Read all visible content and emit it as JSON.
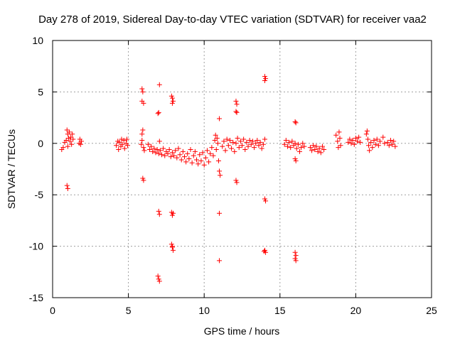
{
  "chart_data": {
    "type": "scatter",
    "title": "Day 278 of 2019, Sidereal Day-to-day VTEC variation (SDTVAR) for receiver vaa2",
    "xlabel": "GPS time / hours",
    "ylabel": "SDTVAR / TECUs",
    "xlim": [
      0,
      25
    ],
    "ylim": [
      -15,
      10
    ],
    "xticks": [
      0,
      5,
      10,
      15,
      20,
      25
    ],
    "yticks": [
      -15,
      -10,
      -5,
      0,
      5,
      10
    ],
    "grid": true,
    "marker": "+",
    "marker_color": "#ff0000",
    "series": [
      {
        "name": "SDTVAR",
        "points": [
          [
            0.6,
            -0.6
          ],
          [
            0.7,
            -0.4
          ],
          [
            0.8,
            0.1
          ],
          [
            0.9,
            0.3
          ],
          [
            0.95,
            1.3
          ],
          [
            1.0,
            -0.3
          ],
          [
            1.0,
            0.9
          ],
          [
            1.05,
            0.5
          ],
          [
            1.1,
            1.1
          ],
          [
            1.15,
            0.2
          ],
          [
            1.2,
            0.6
          ],
          [
            1.25,
            -0.1
          ],
          [
            1.3,
            0.9
          ],
          [
            1.35,
            0.4
          ],
          [
            0.95,
            -4.1
          ],
          [
            1.0,
            -4.4
          ],
          [
            1.75,
            0.0
          ],
          [
            1.8,
            0.4
          ],
          [
            1.85,
            -0.1
          ],
          [
            1.9,
            0.2
          ],
          [
            4.2,
            -0.2
          ],
          [
            4.3,
            0.2
          ],
          [
            4.35,
            -0.6
          ],
          [
            4.4,
            0.1
          ],
          [
            4.5,
            -0.3
          ],
          [
            4.55,
            0.4
          ],
          [
            4.6,
            -0.1
          ],
          [
            4.7,
            0.3
          ],
          [
            4.75,
            -0.5
          ],
          [
            4.85,
            0.0
          ],
          [
            4.9,
            0.4
          ],
          [
            4.95,
            -0.2
          ],
          [
            5.9,
            5.3
          ],
          [
            5.95,
            5.0
          ],
          [
            5.9,
            4.1
          ],
          [
            6.0,
            3.9
          ],
          [
            5.95,
            1.3
          ],
          [
            5.9,
            0.9
          ],
          [
            5.85,
            -0.1
          ],
          [
            5.9,
            0.3
          ],
          [
            6.0,
            -0.4
          ],
          [
            6.05,
            -0.7
          ],
          [
            5.95,
            -3.4
          ],
          [
            6.0,
            -3.6
          ],
          [
            6.3,
            -0.1
          ],
          [
            6.4,
            -0.6
          ],
          [
            6.5,
            -0.3
          ],
          [
            6.6,
            -0.8
          ],
          [
            6.7,
            -0.5
          ],
          [
            6.8,
            -0.9
          ],
          [
            6.9,
            -0.6
          ],
          [
            7.0,
            -1.0
          ],
          [
            7.05,
            0.2
          ],
          [
            7.1,
            -0.7
          ],
          [
            7.2,
            -1.1
          ],
          [
            7.3,
            -0.5
          ],
          [
            7.4,
            -1.2
          ],
          [
            7.5,
            -0.8
          ],
          [
            7.6,
            -1.0
          ],
          [
            7.7,
            -0.6
          ],
          [
            7.8,
            -1.3
          ],
          [
            7.9,
            -0.9
          ],
          [
            8.0,
            -1.2
          ],
          [
            8.1,
            -0.7
          ],
          [
            8.2,
            -1.4
          ],
          [
            8.3,
            -0.5
          ],
          [
            8.4,
            -1.1
          ],
          [
            8.5,
            -1.6
          ],
          [
            8.6,
            -0.8
          ],
          [
            8.7,
            -1.3
          ],
          [
            8.8,
            -1.8
          ],
          [
            8.9,
            -1.0
          ],
          [
            9.0,
            -1.5
          ],
          [
            9.1,
            -0.6
          ],
          [
            9.2,
            -1.9
          ],
          [
            9.3,
            -1.2
          ],
          [
            9.4,
            -0.8
          ],
          [
            9.5,
            -1.6
          ],
          [
            9.6,
            -2.0
          ],
          [
            9.7,
            -1.1
          ],
          [
            9.8,
            -1.7
          ],
          [
            9.9,
            -0.9
          ],
          [
            10.0,
            -2.1
          ],
          [
            10.1,
            -1.4
          ],
          [
            10.2,
            -0.7
          ],
          [
            10.3,
            -1.8
          ],
          [
            10.4,
            -1.0
          ],
          [
            10.5,
            -0.4
          ],
          [
            10.6,
            -1.2
          ],
          [
            10.7,
            0.3
          ],
          [
            10.75,
            0.8
          ],
          [
            10.8,
            -0.6
          ],
          [
            10.85,
            0.5
          ],
          [
            10.9,
            0.0
          ],
          [
            7.05,
            5.7
          ],
          [
            7.0,
            3.0
          ],
          [
            6.95,
            2.9
          ],
          [
            7.0,
            -6.6
          ],
          [
            7.05,
            -6.9
          ],
          [
            6.95,
            -12.9
          ],
          [
            7.0,
            -13.2
          ],
          [
            7.05,
            -13.4
          ],
          [
            7.85,
            4.6
          ],
          [
            7.9,
            4.4
          ],
          [
            7.95,
            4.1
          ],
          [
            7.9,
            3.9
          ],
          [
            7.85,
            -6.7
          ],
          [
            7.9,
            -7.0
          ],
          [
            7.95,
            -6.8
          ],
          [
            7.85,
            -9.8
          ],
          [
            7.9,
            -10.1
          ],
          [
            7.95,
            -10.4
          ],
          [
            7.9,
            -10.0
          ],
          [
            11.0,
            2.4
          ],
          [
            10.95,
            -1.7
          ],
          [
            11.0,
            -2.7
          ],
          [
            11.05,
            -3.1
          ],
          [
            11.0,
            -6.8
          ],
          [
            11.0,
            -11.4
          ],
          [
            11.2,
            -0.3
          ],
          [
            11.3,
            0.2
          ],
          [
            11.4,
            -0.7
          ],
          [
            11.5,
            0.4
          ],
          [
            11.6,
            -0.2
          ],
          [
            11.7,
            0.3
          ],
          [
            11.8,
            -0.5
          ],
          [
            11.9,
            0.1
          ],
          [
            12.0,
            -0.8
          ],
          [
            12.1,
            0.0
          ],
          [
            12.2,
            0.5
          ],
          [
            12.3,
            -0.4
          ],
          [
            12.4,
            0.2
          ],
          [
            12.5,
            -0.2
          ],
          [
            12.6,
            0.4
          ],
          [
            12.7,
            -0.6
          ],
          [
            12.8,
            0.1
          ],
          [
            12.9,
            -0.3
          ],
          [
            13.0,
            0.3
          ],
          [
            13.1,
            -0.1
          ],
          [
            13.2,
            0.2
          ],
          [
            13.3,
            -0.4
          ],
          [
            13.4,
            0.0
          ],
          [
            13.5,
            0.3
          ],
          [
            13.6,
            -0.2
          ],
          [
            13.7,
            0.1
          ],
          [
            13.8,
            -0.5
          ],
          [
            13.9,
            -0.1
          ],
          [
            14.0,
            0.4
          ],
          [
            12.1,
            4.1
          ],
          [
            12.15,
            3.8
          ],
          [
            12.1,
            3.1
          ],
          [
            12.15,
            3.0
          ],
          [
            12.1,
            -3.6
          ],
          [
            12.15,
            -3.8
          ],
          [
            14.0,
            6.5
          ],
          [
            14.05,
            6.3
          ],
          [
            14.0,
            6.1
          ],
          [
            14.0,
            -5.4
          ],
          [
            14.05,
            -5.6
          ],
          [
            14.0,
            -10.4
          ],
          [
            14.05,
            -10.6
          ],
          [
            13.95,
            -10.5
          ],
          [
            15.3,
            -0.1
          ],
          [
            15.4,
            0.3
          ],
          [
            15.5,
            -0.3
          ],
          [
            15.6,
            0.1
          ],
          [
            15.7,
            -0.4
          ],
          [
            15.8,
            0.2
          ],
          [
            15.9,
            -0.2
          ],
          [
            16.0,
            0.0
          ],
          [
            16.1,
            -0.5
          ],
          [
            16.2,
            -0.1
          ],
          [
            16.3,
            -0.8
          ],
          [
            16.4,
            -0.4
          ],
          [
            16.5,
            0.0
          ],
          [
            16.6,
            -0.3
          ],
          [
            16.0,
            2.1
          ],
          [
            16.05,
            2.0
          ],
          [
            16.0,
            -1.5
          ],
          [
            16.05,
            -1.7
          ],
          [
            16.0,
            -10.6
          ],
          [
            16.05,
            -10.9
          ],
          [
            16.0,
            -11.2
          ],
          [
            16.05,
            -11.4
          ],
          [
            17.0,
            -0.4
          ],
          [
            17.1,
            -0.7
          ],
          [
            17.2,
            -0.2
          ],
          [
            17.3,
            -0.6
          ],
          [
            17.4,
            -0.3
          ],
          [
            17.5,
            -0.8
          ],
          [
            17.6,
            -0.5
          ],
          [
            17.7,
            -0.9
          ],
          [
            17.8,
            -0.3
          ],
          [
            17.9,
            -0.6
          ],
          [
            18.7,
            0.8
          ],
          [
            18.8,
            0.2
          ],
          [
            18.85,
            -0.4
          ],
          [
            18.9,
            1.1
          ],
          [
            18.95,
            0.5
          ],
          [
            19.0,
            -0.2
          ],
          [
            19.5,
            0.1
          ],
          [
            19.6,
            0.4
          ],
          [
            19.7,
            0.0
          ],
          [
            19.8,
            0.3
          ],
          [
            19.9,
            -0.1
          ],
          [
            20.0,
            0.5
          ],
          [
            20.1,
            0.2
          ],
          [
            20.2,
            0.6
          ],
          [
            20.3,
            0.1
          ],
          [
            20.7,
            0.9
          ],
          [
            20.75,
            1.2
          ],
          [
            20.8,
            0.4
          ],
          [
            20.85,
            -0.2
          ],
          [
            20.9,
            -0.7
          ],
          [
            21.0,
            0.1
          ],
          [
            21.1,
            -0.4
          ],
          [
            21.2,
            0.3
          ],
          [
            21.3,
            -0.1
          ],
          [
            21.4,
            0.4
          ],
          [
            21.5,
            -0.2
          ],
          [
            21.6,
            0.2
          ],
          [
            21.8,
            0.6
          ],
          [
            21.9,
            0.0
          ],
          [
            22.1,
            0.1
          ],
          [
            22.2,
            -0.2
          ],
          [
            22.3,
            0.3
          ],
          [
            22.4,
            -0.1
          ],
          [
            22.5,
            0.2
          ],
          [
            22.6,
            -0.3
          ]
        ]
      }
    ]
  }
}
